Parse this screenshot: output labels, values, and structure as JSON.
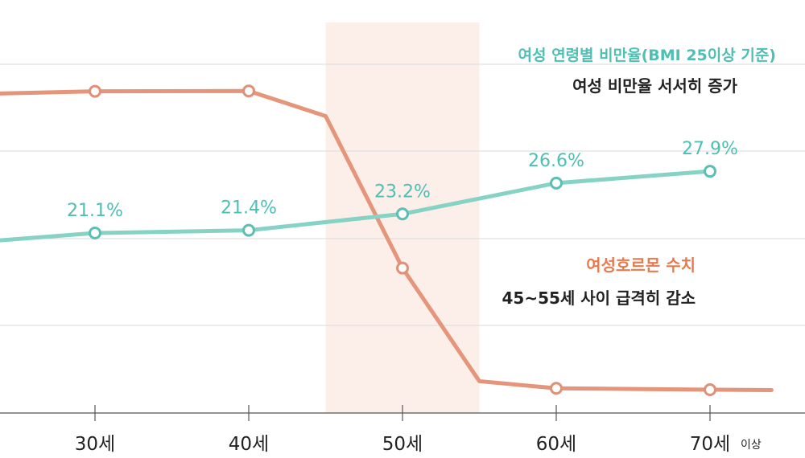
{
  "chart_data": {
    "type": "line",
    "x_ticks": [
      "30세",
      "40세",
      "50세",
      "60세",
      "70세"
    ],
    "x_tick_suffix_last": "이상",
    "x": [
      20,
      30,
      40,
      45,
      50,
      55,
      60,
      70,
      74
    ],
    "series": [
      {
        "name": "여성 연령별 비만율(BMI 25이상 기준)",
        "color": "#86d3c5",
        "marker_color": "#5cbfb3",
        "points": [
          {
            "x": 20,
            "y": 19.8
          },
          {
            "x": 30,
            "y": 21.1,
            "label": "21.1%"
          },
          {
            "x": 40,
            "y": 21.4,
            "label": "21.4%"
          },
          {
            "x": 50,
            "y": 23.2,
            "label": "23.2%"
          },
          {
            "x": 60,
            "y": 26.6,
            "label": "26.6%"
          },
          {
            "x": 70,
            "y": 27.9,
            "label": "27.9%"
          }
        ]
      },
      {
        "name": "여성호르몬 수치",
        "color": "#e4957a",
        "marker_color": "#df9077",
        "points": [
          {
            "x": 20,
            "y": 88
          },
          {
            "x": 30,
            "y": 89
          },
          {
            "x": 40,
            "y": 89.1
          },
          {
            "x": 45,
            "y": 82
          },
          {
            "x": 50,
            "y": 39
          },
          {
            "x": 55,
            "y": 7
          },
          {
            "x": 60,
            "y": 5
          },
          {
            "x": 70,
            "y": 4.6
          },
          {
            "x": 74,
            "y": 4.5
          }
        ],
        "markers_at": [
          30,
          40,
          50,
          60,
          70
        ]
      }
    ],
    "highlight_range": [
      45,
      55
    ],
    "highlight_color": "#fcefea",
    "grid": "horizontal",
    "annotations": {
      "obesity": {
        "title": "여성 연령별 비만율(BMI 25이상 기준)",
        "text": "여성 비만율 서서히 증가",
        "title_color": "#4dbfb3",
        "text_color": "#222222"
      },
      "hormone": {
        "title": "여성호르몬 수치",
        "text": "45~55세 사이 급격히 감소",
        "title_color": "#e57b4f",
        "text_color": "#222222"
      }
    }
  }
}
